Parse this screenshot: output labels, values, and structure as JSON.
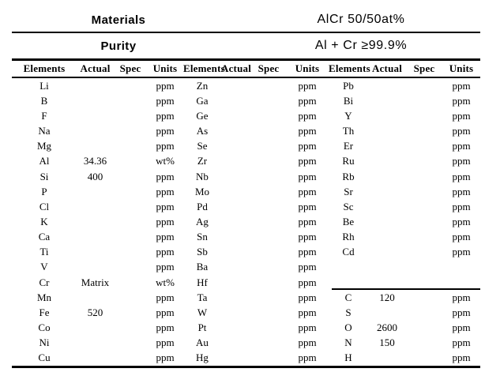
{
  "header": {
    "materials_label": "Materials",
    "materials_value": "AlCr 50/50at%",
    "purity_label": "Purity",
    "purity_value": "Al + Cr ≥99.9%"
  },
  "table": {
    "column_headers": [
      "Elements",
      "Actual",
      "Spec",
      "Units"
    ],
    "group_count": 3,
    "rows": [
      [
        "Li",
        "",
        "",
        "ppm",
        "Zn",
        "",
        "",
        "ppm",
        "Pb",
        "",
        "",
        "ppm"
      ],
      [
        "B",
        "",
        "",
        "ppm",
        "Ga",
        "",
        "",
        "ppm",
        "Bi",
        "",
        "",
        "ppm"
      ],
      [
        "F",
        "",
        "",
        "ppm",
        "Ge",
        "",
        "",
        "ppm",
        "Y",
        "",
        "",
        "ppm"
      ],
      [
        "Na",
        "",
        "",
        "ppm",
        "As",
        "",
        "",
        "ppm",
        "Th",
        "",
        "",
        "ppm"
      ],
      [
        "Mg",
        "",
        "",
        "ppm",
        "Se",
        "",
        "",
        "ppm",
        "Er",
        "",
        "",
        "ppm"
      ],
      [
        "Al",
        "34.36",
        "",
        "wt%",
        "Zr",
        "",
        "",
        "ppm",
        "Ru",
        "",
        "",
        "ppm"
      ],
      [
        "Si",
        "400",
        "",
        "ppm",
        "Nb",
        "",
        "",
        "ppm",
        "Rb",
        "",
        "",
        "ppm"
      ],
      [
        "P",
        "",
        "",
        "ppm",
        "Mo",
        "",
        "",
        "ppm",
        "Sr",
        "",
        "",
        "ppm"
      ],
      [
        "Cl",
        "",
        "",
        "ppm",
        "Pd",
        "",
        "",
        "ppm",
        "Sc",
        "",
        "",
        "ppm"
      ],
      [
        "K",
        "",
        "",
        "ppm",
        "Ag",
        "",
        "",
        "ppm",
        "Be",
        "",
        "",
        "ppm"
      ],
      [
        "Ca",
        "",
        "",
        "ppm",
        "Sn",
        "",
        "",
        "ppm",
        "Rh",
        "",
        "",
        "ppm"
      ],
      [
        "Ti",
        "",
        "",
        "ppm",
        "Sb",
        "",
        "",
        "ppm",
        "Cd",
        "",
        "",
        "ppm"
      ],
      [
        "V",
        "",
        "",
        "ppm",
        "Ba",
        "",
        "",
        "ppm",
        "",
        "",
        "",
        ""
      ],
      [
        "Cr",
        "Matrix",
        "",
        "wt%",
        "Hf",
        "",
        "",
        "ppm",
        "",
        "",
        "",
        ""
      ],
      [
        "Mn",
        "",
        "",
        "ppm",
        "Ta",
        "",
        "",
        "ppm",
        "C",
        "120",
        "",
        "ppm"
      ],
      [
        "Fe",
        "520",
        "",
        "ppm",
        "W",
        "",
        "",
        "ppm",
        "S",
        "",
        "",
        "ppm"
      ],
      [
        "Co",
        "",
        "",
        "ppm",
        "Pt",
        "",
        "",
        "ppm",
        "O",
        "2600",
        "",
        "ppm"
      ],
      [
        "Ni",
        "",
        "",
        "ppm",
        "Au",
        "",
        "",
        "ppm",
        "N",
        "150",
        "",
        "ppm"
      ],
      [
        "Cu",
        "",
        "",
        "ppm",
        "Hg",
        "",
        "",
        "ppm",
        "H",
        "",
        "",
        "ppm"
      ]
    ]
  },
  "colors": {
    "text": "#000000",
    "rule": "#000000",
    "background": "#ffffff"
  }
}
